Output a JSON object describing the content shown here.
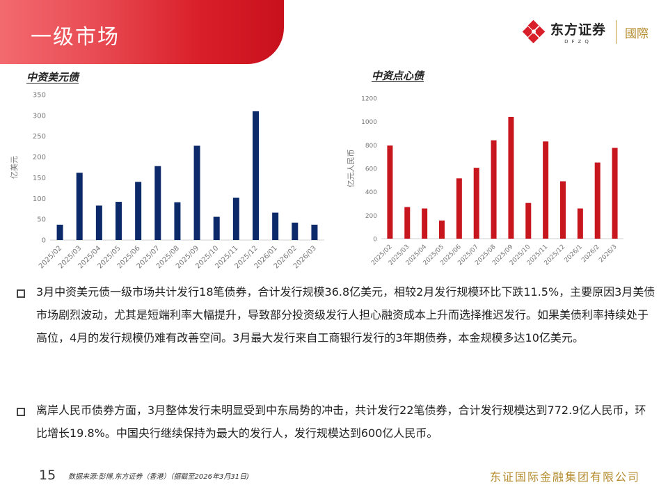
{
  "header": {
    "title": "一级市场",
    "logo": {
      "name_cn": "东方证券",
      "name_en": "DFZQ",
      "intl": "國際",
      "icon": "diamond-logo-icon",
      "brand_color": "#d91f2a"
    }
  },
  "chart_data": [
    {
      "type": "bar",
      "title": "中资美元债",
      "ylabel": "亿美元",
      "xlabel": "",
      "ylim": [
        0,
        350
      ],
      "yticks": [
        0,
        50,
        100,
        150,
        200,
        250,
        300,
        350
      ],
      "grid": false,
      "color": "#0c2a6a",
      "categories": [
        "2025/02",
        "2025/03",
        "2025/04",
        "2025/05",
        "2025/06",
        "2025/07",
        "2025/08",
        "2025/09",
        "2025/10",
        "2025/11",
        "2025/12",
        "2026/01",
        "2026/02",
        "2026/03"
      ],
      "values": [
        37,
        162,
        83,
        92,
        140,
        178,
        91,
        227,
        56,
        102,
        310,
        66,
        42,
        37
      ]
    },
    {
      "type": "bar",
      "title": "中资点心债",
      "ylabel": "亿元人民币",
      "xlabel": "",
      "ylim": [
        0,
        1200
      ],
      "yticks": [
        0,
        200,
        400,
        600,
        800,
        1000,
        1200
      ],
      "grid": false,
      "color": "#c8161e",
      "categories": [
        "2025/02",
        "2025/03",
        "2025/04",
        "2025/05",
        "2025/06",
        "2025/07",
        "2025/08",
        "2025/09",
        "2025/10",
        "2025/11",
        "2025/12",
        "2026/1",
        "2026/2",
        "2026/3"
      ],
      "values": [
        795,
        270,
        258,
        155,
        515,
        605,
        840,
        1040,
        305,
        830,
        490,
        258,
        650,
        775
      ]
    }
  ],
  "paragraphs": [
    "3月中资美元债一级市场共计发行18笔债券，合计发行规模36.8亿美元，相较2月发行规模环比下跌11.5%，主要原因3月美债市场剧烈波动，尤其是短端利率大幅提升，导致部分投资级发行人担心融资成本上升而选择推迟发行。如果美债利率持续处于高位，4月的发行规模仍难有改善空间。3月最大发行来自工商银行发行的3年期债券，本金规模多达10亿美元。",
    "离岸人民币债券方面，3月整体发行未明显受到中东局势的冲击，共计发行22笔债券，合计发行规模达到772.9亿人民币，环比增长19.8%。中国央行继续保持为最大的发行人，发行规模达到600亿人民币。"
  ],
  "footer": {
    "page_number": "15",
    "source": "数据来源:彭博,东方证券（香港）（据截至2026年3月31日)",
    "company": "东证国际金融集团有限公司"
  }
}
